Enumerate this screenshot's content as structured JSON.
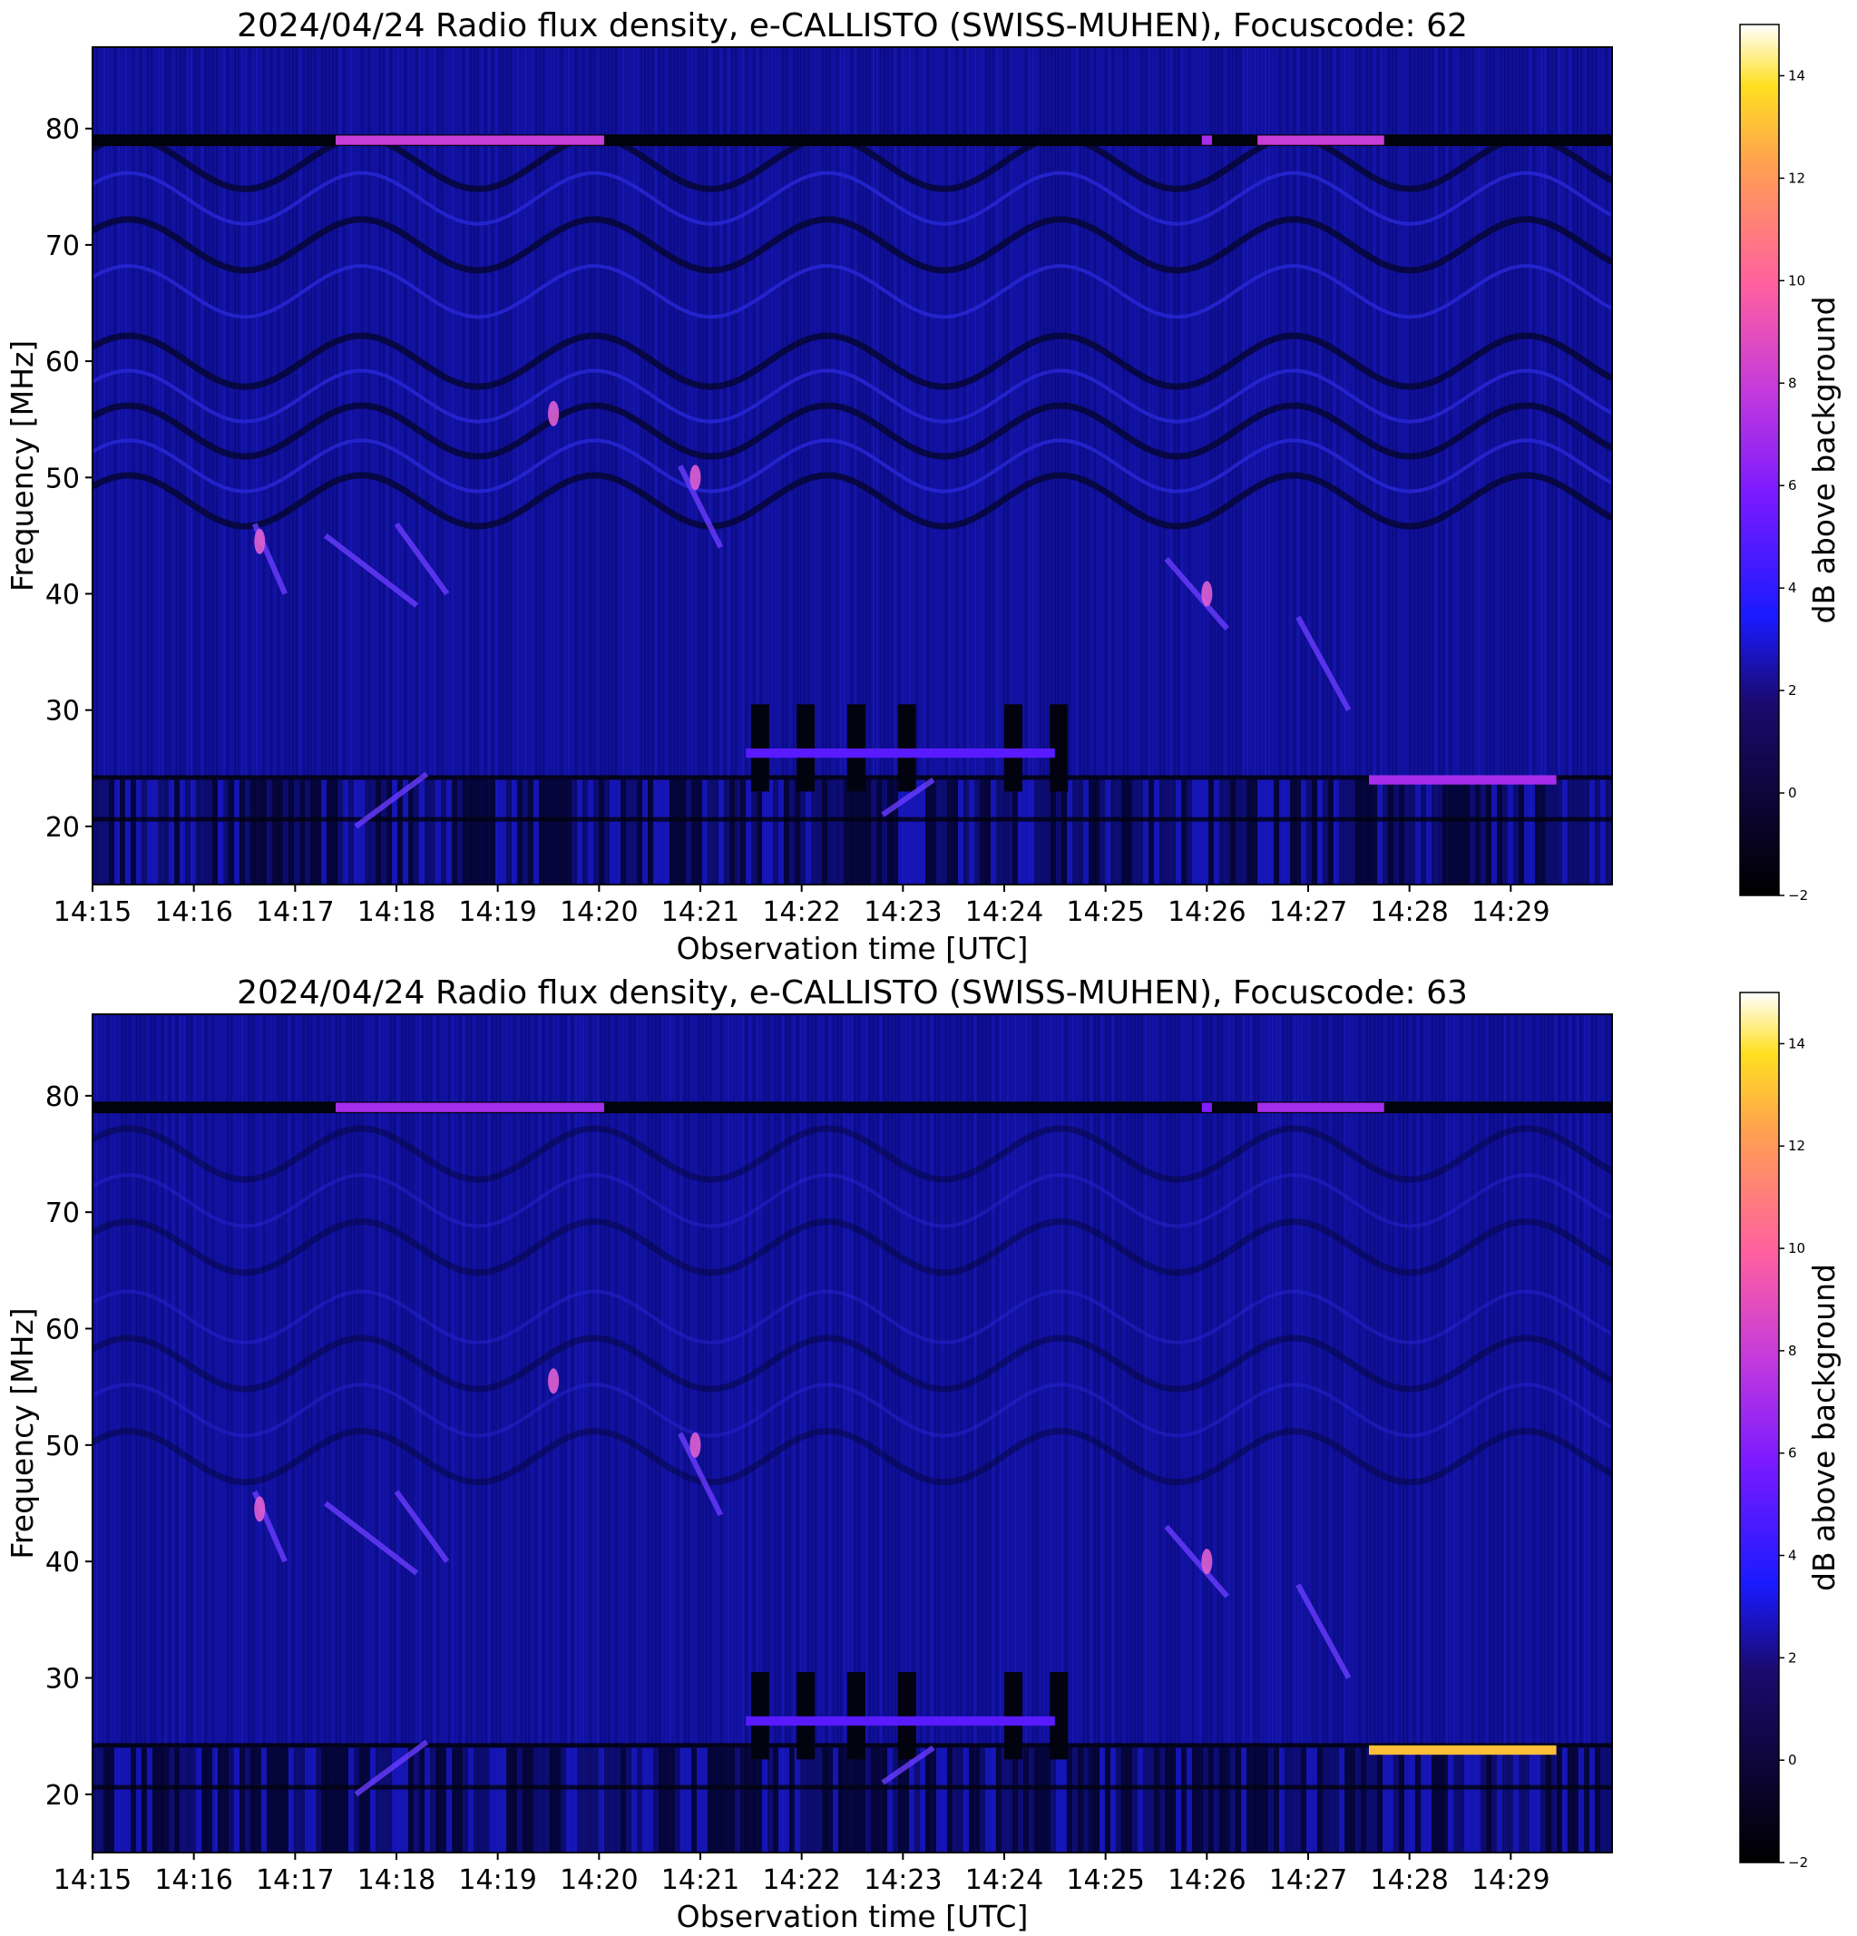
{
  "chart_data": [
    {
      "type": "heatmap",
      "title": "2024/04/24  Radio flux density, e-CALLISTO (SWISS-MUHEN), Focuscode: 62",
      "xlabel": "Observation time [UTC]",
      "ylabel": "Frequency [MHz]",
      "colorbar_label": "dB above background",
      "x_ticks": [
        "14:15",
        "14:16",
        "14:17",
        "14:18",
        "14:19",
        "14:20",
        "14:21",
        "14:22",
        "14:23",
        "14:24",
        "14:25",
        "14:26",
        "14:27",
        "14:28",
        "14:29"
      ],
      "xlim_minutes": [
        0,
        15
      ],
      "y_ticks": [
        20,
        30,
        40,
        50,
        60,
        70,
        80
      ],
      "ylim": [
        15,
        87
      ],
      "colorbar_ticks": [
        -2,
        0,
        2,
        4,
        6,
        8,
        10,
        12,
        14
      ],
      "clim": [
        -2,
        15
      ],
      "colormap": "gnuplot2",
      "bright_lines": [
        {
          "freq": 79,
          "t_start": 2.4,
          "t_end": 5.05,
          "level": 8
        },
        {
          "freq": 79,
          "t_start": 10.95,
          "t_end": 11.05,
          "level": 7
        },
        {
          "freq": 79,
          "t_start": 11.5,
          "t_end": 12.75,
          "level": 8
        },
        {
          "freq": 24,
          "t_start": 12.6,
          "t_end": 14.45,
          "level": 7
        },
        {
          "freq": 26.3,
          "t_start": 6.45,
          "t_end": 9.5,
          "level": 5
        }
      ]
    },
    {
      "type": "heatmap",
      "title": "2024/04/24  Radio flux density, e-CALLISTO (SWISS-MUHEN), Focuscode: 63",
      "xlabel": "Observation time [UTC]",
      "ylabel": "Frequency [MHz]",
      "colorbar_label": "dB above background",
      "x_ticks": [
        "14:15",
        "14:16",
        "14:17",
        "14:18",
        "14:19",
        "14:20",
        "14:21",
        "14:22",
        "14:23",
        "14:24",
        "14:25",
        "14:26",
        "14:27",
        "14:28",
        "14:29"
      ],
      "xlim_minutes": [
        0,
        15
      ],
      "y_ticks": [
        20,
        30,
        40,
        50,
        60,
        70,
        80
      ],
      "ylim": [
        15,
        87
      ],
      "colorbar_ticks": [
        -2,
        0,
        2,
        4,
        6,
        8,
        10,
        12,
        14
      ],
      "clim": [
        -2,
        15
      ],
      "colormap": "gnuplot2",
      "bright_lines": [
        {
          "freq": 79,
          "t_start": 2.4,
          "t_end": 5.05,
          "level": 7
        },
        {
          "freq": 79,
          "t_start": 10.95,
          "t_end": 11.05,
          "level": 6
        },
        {
          "freq": 79,
          "t_start": 11.5,
          "t_end": 12.75,
          "level": 7
        },
        {
          "freq": 23.8,
          "t_start": 12.6,
          "t_end": 14.45,
          "level": 13
        },
        {
          "freq": 26.3,
          "t_start": 6.45,
          "t_end": 9.5,
          "level": 5
        }
      ]
    }
  ]
}
